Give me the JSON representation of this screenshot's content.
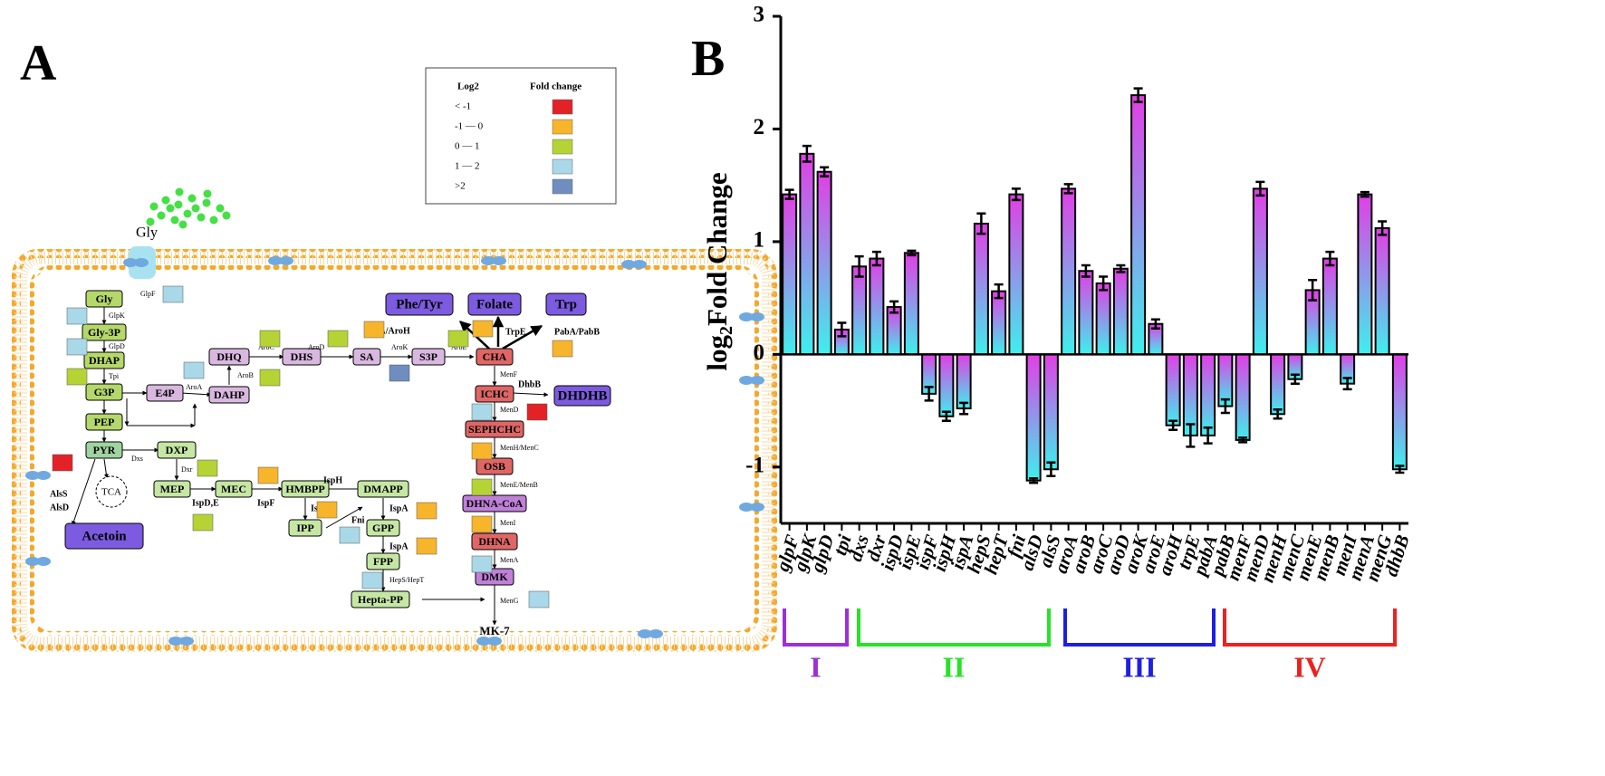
{
  "panel_a": {
    "label": "A",
    "legend": {
      "header": [
        "Log2",
        "Fold change"
      ],
      "rows": [
        {
          "label": "< -1",
          "color": "#e32228"
        },
        {
          "label": "-1 — 0",
          "color": "#f7b52c"
        },
        {
          "label": "0 — 1",
          "color": "#b5d334"
        },
        {
          "label": "1 — 2",
          "color": "#a9d9e8"
        },
        {
          "label": ">2",
          "color": "#6f8dbf"
        }
      ]
    },
    "outside": "Gly",
    "nodes": {
      "gly": "Gly",
      "gly3p": "Gly-3P",
      "dhap": "DHAP",
      "g3p": "G3P",
      "pep": "PEP",
      "pyr": "PYR",
      "dxp": "DXP",
      "e4p": "E4P",
      "dahp": "DAHP",
      "dhq": "DHQ",
      "dhs": "DHS",
      "sa": "SA",
      "s3p": "S3P",
      "cha": "CHA",
      "ichc": "ICHC",
      "sephchc": "SEPHCHC",
      "osb": "OSB",
      "dhnacoa": "DHNA-CoA",
      "dhna": "DHNA",
      "dmk": "DMK",
      "mep": "MEP",
      "mec": "MEC",
      "hmbpp": "HMBPP",
      "dmapp": "DMAPP",
      "ipp": "IPP",
      "gpp": "GPP",
      "fpp": "FPP",
      "heptapp": "Hepta-PP",
      "tca": "TCA",
      "acetoin": "Acetoin",
      "phetyr": "Phe/Tyr",
      "folate": "Folate",
      "trp": "Trp",
      "dhdhb": "DHDHB",
      "mk7": "MK-7"
    },
    "enzymes": {
      "glpF": "GlpF",
      "glpK": "GlpK",
      "glpD": "GlpD",
      "tpi": "Tpi",
      "aroA": "AroA",
      "aroB": "AroB",
      "aroC": "AroC",
      "aroD": "AroD",
      "aroK": "AroK",
      "aroE": "AroE",
      "dxs": "Dxs",
      "dxr": "Dxr",
      "ispDE": "IspD,E",
      "ispF": "IspF",
      "ispH1": "IspH",
      "ispH2": "IspH",
      "ispA1": "IspA",
      "fni": "Fni",
      "ispA2": "IspA",
      "hepST": "HepS/HepT",
      "menF": "MenF",
      "menD": "MenD",
      "menHC": "MenH/MenC",
      "menEB": "MenE/MenB",
      "menI": "MenI",
      "menA": "MenA",
      "menG": "MenG",
      "trpE": "TrpE",
      "dhbB": "DhbB",
      "aroAH": "AroA/AroH",
      "pabAB": "PabA/PabB",
      "alsS": "AlsS",
      "alsD": "AlsD"
    }
  },
  "chart_data": {
    "type": "bar",
    "panel_label": "B",
    "ylabel_parts": [
      "log",
      "2",
      "Fold Change"
    ],
    "categories": [
      "glpF",
      "glpK",
      "glpD",
      "tpi",
      "dxs",
      "dxr",
      "ispD",
      "ispE",
      "ispF",
      "ispH",
      "ispA",
      "hepS",
      "hepT",
      "fni",
      "alsD",
      "alsS",
      "aroA",
      "aroB",
      "aroC",
      "aroD",
      "aroK",
      "aroE",
      "aroH",
      "trpE",
      "pabA",
      "pabB",
      "menF",
      "menD",
      "menH",
      "menC",
      "menE",
      "menB",
      "menI",
      "menA",
      "menG",
      "dhbB"
    ],
    "values": [
      1.42,
      1.78,
      1.62,
      0.22,
      0.78,
      0.85,
      0.42,
      0.9,
      -0.35,
      -0.55,
      -0.48,
      1.16,
      0.56,
      1.42,
      -1.12,
      -1.02,
      1.47,
      0.74,
      0.63,
      0.76,
      2.3,
      0.27,
      -0.63,
      -0.72,
      -0.72,
      -0.46,
      -0.76,
      1.47,
      -0.53,
      -0.22,
      0.57,
      0.85,
      -0.26,
      1.42,
      1.12,
      -1.02
    ],
    "errors": [
      0.04,
      0.07,
      0.04,
      0.06,
      0.09,
      0.06,
      0.05,
      0.02,
      0.06,
      0.04,
      0.05,
      0.09,
      0.06,
      0.05,
      0.02,
      0.06,
      0.04,
      0.05,
      0.06,
      0.03,
      0.06,
      0.04,
      0.04,
      0.1,
      0.07,
      0.06,
      0.02,
      0.06,
      0.04,
      0.04,
      0.09,
      0.06,
      0.05,
      0.02,
      0.06,
      0.03
    ],
    "ylim": [
      -1.5,
      3
    ],
    "yticks": [
      -1,
      0,
      1,
      2,
      3
    ],
    "gradient": [
      "#e23ee6",
      "#3ef0ee"
    ],
    "groups": [
      {
        "label": "I",
        "color": "#9b30d9"
      },
      {
        "label": "II",
        "color": "#27e227"
      },
      {
        "label": "III",
        "color": "#1f1fe0"
      },
      {
        "label": "IV",
        "color": "#ea2222"
      }
    ]
  }
}
